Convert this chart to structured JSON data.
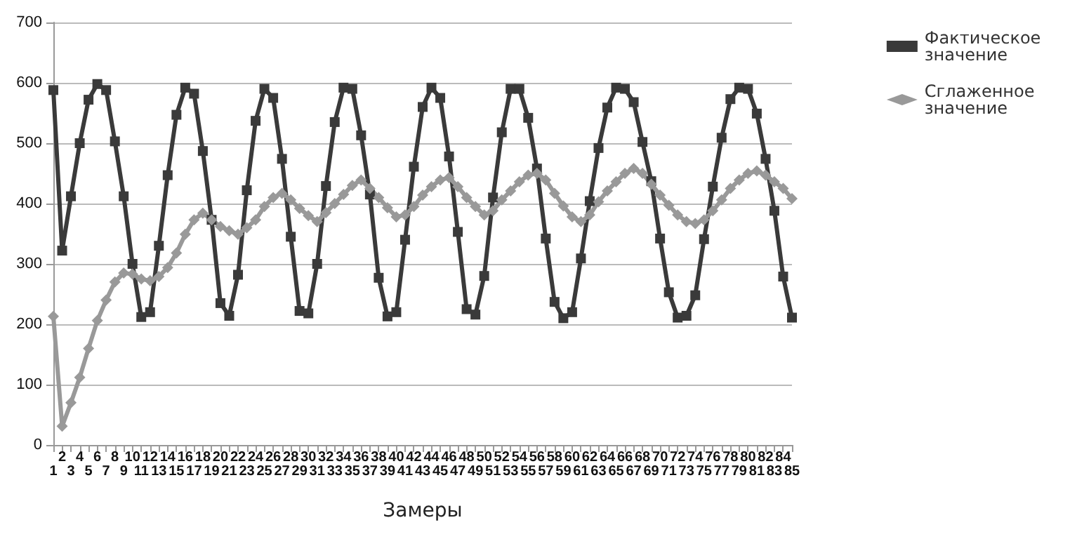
{
  "chart_data": {
    "type": "line",
    "xlabel": "Замеры",
    "categories": [
      "1",
      "2",
      "3",
      "4",
      "5",
      "6",
      "7",
      "8",
      "9",
      "10",
      "11",
      "12",
      "13",
      "14",
      "15",
      "16",
      "17",
      "18",
      "19",
      "20",
      "21",
      "22",
      "23",
      "24",
      "25",
      "26",
      "27",
      "28",
      "29",
      "30",
      "31",
      "32",
      "33",
      "34",
      "35",
      "36",
      "37",
      "38",
      "39",
      "40",
      "41",
      "42",
      "43",
      "44",
      "45",
      "46",
      "47",
      "48",
      "49",
      "50",
      "51",
      "52",
      "53",
      "54",
      "55",
      "56",
      "57",
      "58",
      "59",
      "60",
      "61",
      "62",
      "63",
      "64",
      "65",
      "66",
      "67",
      "68",
      "69",
      "70",
      "71",
      "72",
      "73",
      "74",
      "75",
      "76",
      "77",
      "78",
      "79",
      "80",
      "81",
      "82",
      "83",
      "84",
      "85"
    ],
    "series": [
      {
        "name": "Фактическое значение",
        "color": "#3a3a3a",
        "marker": "square",
        "values": [
          588,
          322,
          412,
          500,
          572,
          598,
          588,
          503,
          412,
          300,
          212,
          220,
          330,
          447,
          547,
          592,
          582,
          487,
          373,
          235,
          214,
          282,
          422,
          537,
          590,
          575,
          474,
          345,
          222,
          218,
          300,
          429,
          535,
          592,
          590,
          513,
          415,
          277,
          213,
          220,
          340,
          461,
          560,
          592,
          575,
          478,
          353,
          225,
          216,
          280,
          410,
          518,
          590,
          590,
          542,
          458,
          342,
          237,
          210,
          220,
          309,
          404,
          492,
          559,
          592,
          590,
          568,
          502,
          437,
          342,
          253,
          211,
          214,
          248,
          341,
          428,
          509,
          573,
          592,
          590,
          549,
          474,
          388,
          279,
          211
        ]
      },
      {
        "name": "Сглаженное значение",
        "color": "#999999",
        "marker": "diamond",
        "values": [
          213,
          31,
          70,
          112,
          160,
          206,
          240,
          270,
          285,
          283,
          275,
          272,
          279,
          294,
          318,
          349,
          373,
          384,
          373,
          362,
          355,
          349,
          360,
          373,
          395,
          410,
          417,
          406,
          392,
          380,
          370,
          385,
          400,
          415,
          430,
          439,
          425,
          410,
          393,
          378,
          381,
          395,
          414,
          428,
          439,
          443,
          428,
          410,
          395,
          381,
          388,
          406,
          421,
          436,
          447,
          450,
          439,
          417,
          396,
          378,
          370,
          381,
          403,
          421,
          436,
          450,
          458,
          450,
          432,
          414,
          397,
          381,
          370,
          367,
          373,
          388,
          406,
          425,
          439,
          450,
          454,
          447,
          436,
          425,
          408
        ]
      }
    ],
    "ylim": [
      0,
      700
    ],
    "yticks": [
      0,
      100,
      200,
      300,
      400,
      500,
      600,
      700
    ],
    "grid": "y",
    "legend": "top right"
  }
}
